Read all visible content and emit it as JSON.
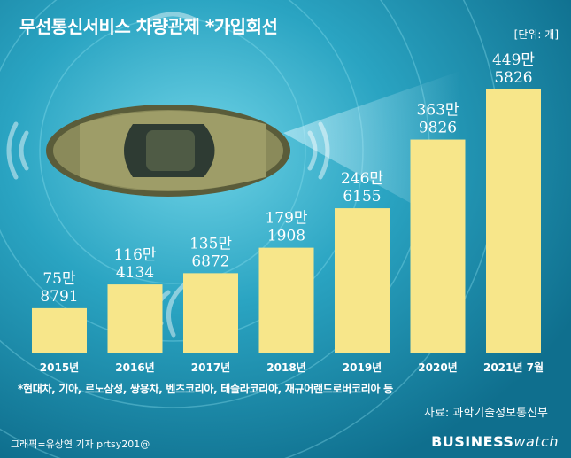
{
  "header": {
    "title": "무선통신서비스 차량관제 *가입회선",
    "unit": "[단위: 개]"
  },
  "footer": {
    "footnote": "*현대차, 기아, 르노삼성, 쌍용차, 벤츠코리아, 테슬라코리아, 재규어랜드로버코리아 등",
    "source": "자료: 과학기술정보통신부",
    "credit": "그래픽=유상연 기자 prtsy201@",
    "logo_main": "BUSINESS",
    "logo_sub": "watch"
  },
  "colors": {
    "background": "#1d9ab8",
    "bar": "#f7e68a",
    "text": "#ffffff"
  },
  "chart_data": {
    "type": "bar",
    "categories": [
      "2015년",
      "2016년",
      "2017년",
      "2018년",
      "2019년",
      "2020년",
      "2021년 7월"
    ],
    "values": [
      758791,
      1164134,
      1356872,
      1791908,
      2466155,
      3639826,
      4495826
    ],
    "labels": [
      [
        "75만",
        "8791"
      ],
      [
        "116만",
        "4134"
      ],
      [
        "135만",
        "6872"
      ],
      [
        "179만",
        "1908"
      ],
      [
        "246만",
        "6155"
      ],
      [
        "363만",
        "9826"
      ],
      [
        "449만",
        "5826"
      ]
    ],
    "ylim": [
      0,
      4495826
    ]
  }
}
